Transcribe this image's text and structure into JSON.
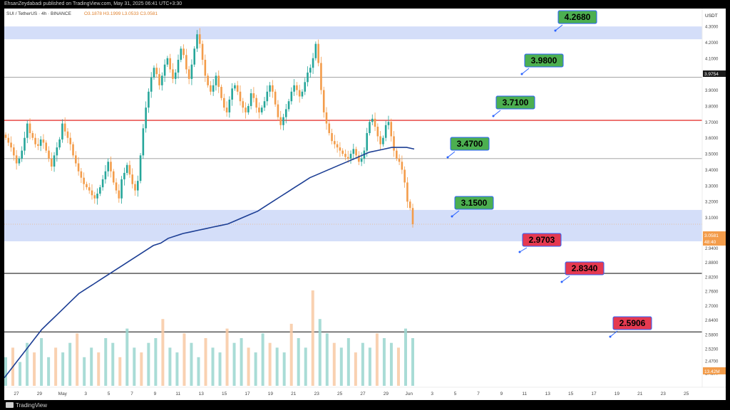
{
  "header": {
    "attribution": "EhsanZeydabadi published on TradingView.com, May 31, 2025 06:41 UTC+3:30",
    "symbol": "SUI / TetherUS · 4h · BINANCE",
    "ohlc": "O3.1878 H3.1999 L3.0533 C3.0581"
  },
  "footer": {
    "brand": "TradingView"
  },
  "axis": {
    "currency": "USDT",
    "y_ticks": [
      "4.3000",
      "4.2000",
      "4.1000",
      "4.0000",
      "3.9000",
      "3.8000",
      "3.7000",
      "3.6000",
      "3.5000",
      "3.4000",
      "3.3000",
      "3.2000",
      "3.1000",
      "3.0000",
      "2.9400",
      "2.8800",
      "2.8200",
      "2.7600",
      "2.7000",
      "2.6400",
      "2.5800",
      "2.5200",
      "2.4700",
      "2.4200"
    ],
    "x_ticks": [
      "27",
      "29",
      "May",
      "3",
      "5",
      "7",
      "9",
      "11",
      "13",
      "15",
      "17",
      "19",
      "21",
      "23",
      "25",
      "27",
      "29",
      "Jun",
      "3",
      "5",
      "7",
      "9",
      "11",
      "13",
      "15",
      "17",
      "19",
      "21",
      "23",
      "25"
    ],
    "price_tag": "3.9754",
    "current_price": "3.0581",
    "countdown": "48:40",
    "volume_tag": "13.42M"
  },
  "chart_data": {
    "type": "line",
    "title": "SUI / TetherUS · 4h · BINANCE",
    "series": [
      {
        "name": "SUI / TetherUS",
        "values": [
          3.6,
          3.57,
          3.54,
          3.49,
          3.44,
          3.47,
          3.52,
          3.6,
          3.69,
          3.63,
          3.6,
          3.56,
          3.55,
          3.59,
          3.57,
          3.52,
          3.47,
          3.42,
          3.49,
          3.54,
          3.59,
          3.69,
          3.64,
          3.6,
          3.56,
          3.49,
          3.44,
          3.39,
          3.35,
          3.31,
          3.29,
          3.27,
          3.24,
          3.22,
          3.25,
          3.29,
          3.34,
          3.39,
          3.45,
          3.39,
          3.32,
          3.27,
          3.22,
          3.34,
          3.38,
          3.43,
          3.37,
          3.31,
          3.27,
          3.33,
          3.49,
          3.66,
          3.79,
          3.89,
          3.98,
          4.04,
          4.0,
          3.93,
          3.99,
          4.06,
          4.1,
          4.03,
          3.97,
          4.01,
          4.09,
          4.16,
          4.12,
          4.03,
          3.97,
          4.06,
          4.16,
          4.25,
          4.19,
          4.09,
          3.99,
          3.93,
          3.89,
          3.93,
          3.99,
          3.92,
          3.85,
          3.79,
          3.76,
          3.84,
          3.91,
          3.93,
          3.89,
          3.83,
          3.79,
          3.76,
          3.8,
          3.88,
          3.85,
          3.79,
          3.76,
          3.79,
          3.83,
          3.89,
          3.93,
          3.89,
          3.81,
          3.73,
          3.68,
          3.73,
          3.78,
          3.83,
          3.89,
          3.93,
          3.9,
          3.86,
          3.89,
          3.95,
          4.01,
          4.04,
          4.1,
          4.19,
          4.07,
          3.9,
          3.76,
          3.69,
          3.63,
          3.58,
          3.56,
          3.54,
          3.52,
          3.5,
          3.48,
          3.47,
          3.5,
          3.53,
          3.49,
          3.45,
          3.47,
          3.52,
          3.63,
          3.7,
          3.72,
          3.67,
          3.61,
          3.56,
          3.6,
          3.68,
          3.7,
          3.61,
          3.52,
          3.47,
          3.45,
          3.4,
          3.32,
          3.2,
          3.16,
          3.0581
        ]
      },
      {
        "name": "MA",
        "values": [
          2.4,
          2.44,
          2.48,
          2.52,
          2.56,
          2.6,
          2.63,
          2.66,
          2.69,
          2.72,
          2.75,
          2.77,
          2.79,
          2.81,
          2.83,
          2.85,
          2.87,
          2.89,
          2.91,
          2.93,
          2.95,
          2.96,
          2.98,
          2.99,
          3.0,
          3.01,
          3.02,
          3.03,
          3.04,
          3.05,
          3.06,
          3.08,
          3.1,
          3.12,
          3.14,
          3.17,
          3.2,
          3.23,
          3.26,
          3.29,
          3.32,
          3.35,
          3.37,
          3.39,
          3.41,
          3.43,
          3.45,
          3.47,
          3.49,
          3.51,
          3.52,
          3.53,
          3.54,
          3.54,
          3.54,
          3.53
        ]
      }
    ],
    "volume_values": [
      0.3,
      0.4,
      0.25,
      0.45,
      0.35,
      0.5,
      0.3,
      0.4,
      0.35,
      0.45,
      0.55,
      0.3,
      0.4,
      0.35,
      0.5,
      0.45,
      0.3,
      0.6,
      0.4,
      0.35,
      0.45,
      0.5,
      0.7,
      0.4,
      0.35,
      0.55,
      0.45,
      0.3,
      0.5,
      0.4,
      0.35,
      0.6,
      0.45,
      0.5,
      0.4,
      0.35,
      0.55,
      0.45,
      0.4,
      0.35,
      0.65,
      0.5,
      0.4,
      1.0,
      0.7,
      0.55,
      0.45,
      0.4,
      0.5,
      0.35,
      0.45,
      0.4,
      0.55,
      0.5,
      0.45,
      0.4,
      0.6,
      0.5
    ],
    "levels": [
      {
        "price": 4.268,
        "label": "4.2680",
        "kind": "resistance"
      },
      {
        "price": 3.98,
        "label": "3.9800",
        "kind": "resistance"
      },
      {
        "price": 3.71,
        "label": "3.7100",
        "kind": "resistance"
      },
      {
        "price": 3.47,
        "label": "3.4700",
        "kind": "resistance"
      },
      {
        "price": 3.15,
        "label": "3.1500",
        "kind": "resistance"
      },
      {
        "price": 2.9703,
        "label": "2.9703",
        "kind": "support"
      },
      {
        "price": 2.834,
        "label": "2.8340",
        "kind": "support"
      },
      {
        "price": 2.5906,
        "label": "2.5906",
        "kind": "support"
      }
    ],
    "ylim": [
      2.4,
      4.32
    ],
    "grid": false,
    "colors": {
      "up": "#26a69a",
      "down": "#f39c4a",
      "ma": "#1c3e94",
      "zone": "#d4def9",
      "resistance_tag": "#4caf50",
      "support_tag": "#e53950",
      "level_red": "#e53935"
    }
  }
}
